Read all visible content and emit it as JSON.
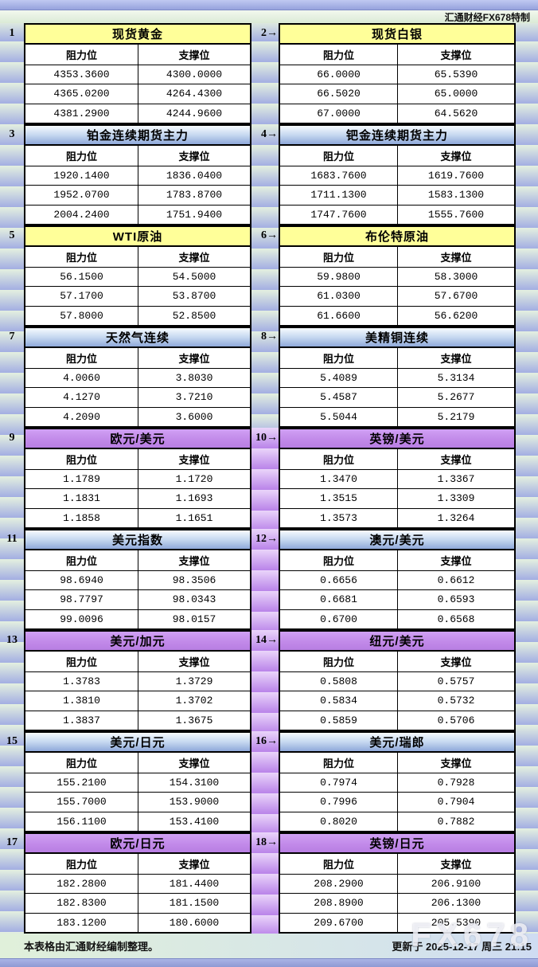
{
  "brand": "汇通财经FX678特制",
  "watermark": "FX678",
  "footer": {
    "left": "本表格由汇通财经编制整理。",
    "right": "更新于 2025-12-17 周三 21:15"
  },
  "colors": {
    "yellow_title": "#ffff99",
    "blue_title_bottom": "#8fa9da",
    "purple_title": "#c28ae9",
    "stripe_light": "#e4f0e0",
    "stripe_blue": "#a3aee2",
    "stripe_purple": "#b983e9",
    "cell_bg": "#ffffff",
    "border": "#000000"
  },
  "separator_themes": [
    "green",
    "green",
    "green",
    "green",
    "purple",
    "purple",
    "purple",
    "purple",
    "purple"
  ],
  "chart_data": {
    "type": "table",
    "title": "汇通财经FX678特制",
    "columns": [
      "阻力位",
      "支撑位"
    ],
    "panels": [
      {
        "num": "1",
        "title": "现货黄金",
        "theme": "yellow",
        "resistance": [
          "4353.3600",
          "4365.0200",
          "4381.2900"
        ],
        "support": [
          "4300.0000",
          "4264.4300",
          "4244.9600"
        ]
      },
      {
        "num": "2→",
        "title": "现货白银",
        "theme": "yellow",
        "resistance": [
          "66.0000",
          "66.5020",
          "67.0000"
        ],
        "support": [
          "65.5390",
          "65.0000",
          "64.5620"
        ]
      },
      {
        "num": "3",
        "title": "铂金连续期货主力",
        "theme": "blue",
        "resistance": [
          "1920.1400",
          "1952.0700",
          "2004.2400"
        ],
        "support": [
          "1836.0400",
          "1783.8700",
          "1751.9400"
        ]
      },
      {
        "num": "4→",
        "title": "钯金连续期货主力",
        "theme": "blue",
        "resistance": [
          "1683.7600",
          "1711.1300",
          "1747.7600"
        ],
        "support": [
          "1619.7600",
          "1583.1300",
          "1555.7600"
        ]
      },
      {
        "num": "5",
        "title": "WTI原油",
        "theme": "yellow",
        "resistance": [
          "56.1500",
          "57.1700",
          "57.8000"
        ],
        "support": [
          "54.5000",
          "53.8700",
          "52.8500"
        ]
      },
      {
        "num": "6→",
        "title": "布伦特原油",
        "theme": "yellow",
        "resistance": [
          "59.9800",
          "61.0300",
          "61.6600"
        ],
        "support": [
          "58.3000",
          "57.6700",
          "56.6200"
        ]
      },
      {
        "num": "7",
        "title": "天然气连续",
        "theme": "blue",
        "resistance": [
          "4.0060",
          "4.1270",
          "4.2090"
        ],
        "support": [
          "3.8030",
          "3.7210",
          "3.6000"
        ]
      },
      {
        "num": "8→",
        "title": "美精铜连续",
        "theme": "blue",
        "resistance": [
          "5.4089",
          "5.4587",
          "5.5044"
        ],
        "support": [
          "5.3134",
          "5.2677",
          "5.2179"
        ]
      },
      {
        "num": "9",
        "title": "欧元/美元",
        "theme": "purple",
        "resistance": [
          "1.1789",
          "1.1831",
          "1.1858"
        ],
        "support": [
          "1.1720",
          "1.1693",
          "1.1651"
        ]
      },
      {
        "num": "10→",
        "title": "英镑/美元",
        "theme": "purple",
        "resistance": [
          "1.3470",
          "1.3515",
          "1.3573"
        ],
        "support": [
          "1.3367",
          "1.3309",
          "1.3264"
        ]
      },
      {
        "num": "11",
        "title": "美元指数",
        "theme": "blue",
        "resistance": [
          "98.6940",
          "98.7797",
          "99.0096"
        ],
        "support": [
          "98.3506",
          "98.0343",
          "98.0157"
        ]
      },
      {
        "num": "12→",
        "title": "澳元/美元",
        "theme": "blue",
        "resistance": [
          "0.6656",
          "0.6681",
          "0.6700"
        ],
        "support": [
          "0.6612",
          "0.6593",
          "0.6568"
        ]
      },
      {
        "num": "13",
        "title": "美元/加元",
        "theme": "purple",
        "resistance": [
          "1.3783",
          "1.3810",
          "1.3837"
        ],
        "support": [
          "1.3729",
          "1.3702",
          "1.3675"
        ]
      },
      {
        "num": "14→",
        "title": "纽元/美元",
        "theme": "purple",
        "resistance": [
          "0.5808",
          "0.5834",
          "0.5859"
        ],
        "support": [
          "0.5757",
          "0.5732",
          "0.5706"
        ]
      },
      {
        "num": "15",
        "title": "美元/日元",
        "theme": "blue",
        "resistance": [
          "155.2100",
          "155.7000",
          "156.1100"
        ],
        "support": [
          "154.3100",
          "153.9000",
          "153.4100"
        ]
      },
      {
        "num": "16→",
        "title": "美元/瑞郎",
        "theme": "blue",
        "resistance": [
          "0.7974",
          "0.7996",
          "0.8020"
        ],
        "support": [
          "0.7928",
          "0.7904",
          "0.7882"
        ]
      },
      {
        "num": "17",
        "title": "欧元/日元",
        "theme": "purple",
        "resistance": [
          "182.2800",
          "182.8300",
          "183.1200"
        ],
        "support": [
          "181.4400",
          "181.1500",
          "180.6000"
        ]
      },
      {
        "num": "18→",
        "title": "英镑/日元",
        "theme": "purple",
        "resistance": [
          "208.2900",
          "208.8900",
          "209.6700"
        ],
        "support": [
          "206.9100",
          "206.1300",
          "205.5390"
        ]
      }
    ]
  }
}
